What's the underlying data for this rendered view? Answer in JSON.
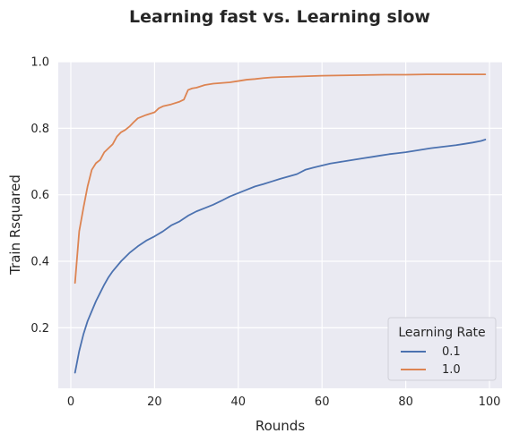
{
  "chart_data": {
    "type": "line",
    "title": "Learning fast vs. Learning slow",
    "xlabel": "Rounds",
    "ylabel": "Train Rsquared",
    "xlim": [
      -3,
      103
    ],
    "ylim": [
      0.018,
      1.0
    ],
    "xticks": [
      0,
      20,
      40,
      60,
      80,
      100
    ],
    "yticks": [
      0.2,
      0.4,
      0.6,
      0.8,
      1.0
    ],
    "xtick_labels": [
      "0",
      "20",
      "40",
      "60",
      "80",
      "100"
    ],
    "ytick_labels": [
      "0.2",
      "0.4",
      "0.6",
      "0.8",
      "1.0"
    ],
    "grid": true,
    "legend": {
      "title": "Learning Rate",
      "placement": "lower-right"
    },
    "series": [
      {
        "name": "0.1",
        "color": "#4c72b0",
        "points": [
          [
            1,
            0.065
          ],
          [
            2,
            0.13
          ],
          [
            3,
            0.18
          ],
          [
            4,
            0.22
          ],
          [
            5,
            0.25
          ],
          [
            6,
            0.28
          ],
          [
            7,
            0.305
          ],
          [
            8,
            0.33
          ],
          [
            9,
            0.352
          ],
          [
            10,
            0.37
          ],
          [
            12,
            0.4
          ],
          [
            14,
            0.425
          ],
          [
            16,
            0.445
          ],
          [
            18,
            0.462
          ],
          [
            20,
            0.475
          ],
          [
            22,
            0.49
          ],
          [
            24,
            0.508
          ],
          [
            26,
            0.52
          ],
          [
            28,
            0.537
          ],
          [
            30,
            0.55
          ],
          [
            32,
            0.56
          ],
          [
            34,
            0.57
          ],
          [
            36,
            0.582
          ],
          [
            38,
            0.595
          ],
          [
            40,
            0.605
          ],
          [
            42,
            0.615
          ],
          [
            44,
            0.625
          ],
          [
            46,
            0.632
          ],
          [
            48,
            0.64
          ],
          [
            50,
            0.648
          ],
          [
            52,
            0.655
          ],
          [
            54,
            0.662
          ],
          [
            56,
            0.675
          ],
          [
            58,
            0.682
          ],
          [
            60,
            0.688
          ],
          [
            62,
            0.694
          ],
          [
            64,
            0.698
          ],
          [
            66,
            0.702
          ],
          [
            68,
            0.706
          ],
          [
            70,
            0.71
          ],
          [
            72,
            0.714
          ],
          [
            74,
            0.718
          ],
          [
            76,
            0.722
          ],
          [
            78,
            0.725
          ],
          [
            80,
            0.728
          ],
          [
            82,
            0.732
          ],
          [
            84,
            0.736
          ],
          [
            86,
            0.74
          ],
          [
            88,
            0.743
          ],
          [
            90,
            0.746
          ],
          [
            92,
            0.749
          ],
          [
            94,
            0.753
          ],
          [
            96,
            0.757
          ],
          [
            98,
            0.762
          ],
          [
            99,
            0.766
          ]
        ]
      },
      {
        "name": "1.0",
        "color": "#dd8452",
        "points": [
          [
            1,
            0.335
          ],
          [
            2,
            0.49
          ],
          [
            3,
            0.56
          ],
          [
            4,
            0.625
          ],
          [
            5,
            0.675
          ],
          [
            6,
            0.695
          ],
          [
            7,
            0.705
          ],
          [
            8,
            0.728
          ],
          [
            9,
            0.74
          ],
          [
            10,
            0.752
          ],
          [
            11,
            0.775
          ],
          [
            12,
            0.788
          ],
          [
            13,
            0.795
          ],
          [
            14,
            0.805
          ],
          [
            15,
            0.818
          ],
          [
            16,
            0.83
          ],
          [
            18,
            0.84
          ],
          [
            20,
            0.848
          ],
          [
            21,
            0.86
          ],
          [
            22,
            0.866
          ],
          [
            24,
            0.872
          ],
          [
            26,
            0.88
          ],
          [
            27,
            0.886
          ],
          [
            28,
            0.915
          ],
          [
            29,
            0.92
          ],
          [
            30,
            0.922
          ],
          [
            32,
            0.93
          ],
          [
            34,
            0.934
          ],
          [
            36,
            0.936
          ],
          [
            38,
            0.938
          ],
          [
            40,
            0.942
          ],
          [
            42,
            0.946
          ],
          [
            44,
            0.948
          ],
          [
            46,
            0.951
          ],
          [
            48,
            0.953
          ],
          [
            50,
            0.954
          ],
          [
            55,
            0.956
          ],
          [
            60,
            0.958
          ],
          [
            65,
            0.959
          ],
          [
            70,
            0.96
          ],
          [
            75,
            0.961
          ],
          [
            80,
            0.961
          ],
          [
            85,
            0.962
          ],
          [
            90,
            0.962
          ],
          [
            95,
            0.962
          ],
          [
            99,
            0.962
          ]
        ]
      }
    ]
  }
}
